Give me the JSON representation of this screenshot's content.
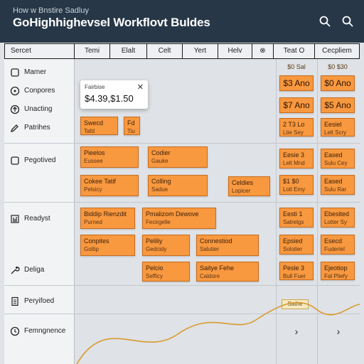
{
  "app": {
    "super_title": "How w Bnstire Sadluy",
    "title": "GoHighhighevsel Workflovt Buldes"
  },
  "header_icons": {
    "search": "search-icon",
    "search2": "search-icon"
  },
  "columns": [
    "Sercet",
    "Temi",
    "Elalt",
    "Celt",
    "Yert",
    "Helv",
    "⊗",
    "Teat O",
    "Cecpliem"
  ],
  "sidebar": {
    "items": [
      {
        "label": "Mamer",
        "icon": "square-icon"
      },
      {
        "label": "Conpores",
        "icon": "compass-icon"
      },
      {
        "label": "Unacting",
        "icon": "upload-icon"
      },
      {
        "label": "Patrihes",
        "icon": "pencil-icon"
      },
      {
        "label": "Pegotived",
        "icon": "square-icon"
      },
      {
        "label": "Readyst",
        "icon": "bar-chart-icon"
      },
      {
        "label": "Deliga",
        "icon": "wrench-icon"
      },
      {
        "label": "Peryifoed",
        "icon": "document-icon"
      },
      {
        "label": "Femngnence",
        "icon": "clock-icon"
      }
    ]
  },
  "popup": {
    "label": "Fairbise",
    "value": "$4.39,$1.50",
    "close": "✕"
  },
  "prices": {
    "col1": {
      "header": "$0 Sal",
      "rows": [
        "$3 Ano",
        "$7 Ano"
      ]
    },
    "col2": {
      "header": "$0 $30",
      "rows": [
        "$0 Ano",
        "$5 Ano"
      ]
    }
  },
  "cards": {
    "c1": {
      "l1": "Swecd",
      "l2": "Tafd"
    },
    "c2": {
      "l1": "Fd",
      "l2": "Tiu"
    },
    "c3": {
      "l1": "Pieelos",
      "l2": "Eussee"
    },
    "c4": {
      "l1": "Codier",
      "l2": "Gauke"
    },
    "c5": {
      "l1": "Cokee Tatif",
      "l2": "Pelsicy"
    },
    "c6": {
      "l1": "Colling",
      "l2": "Sadue"
    },
    "c7": {
      "l1": "Celdies",
      "l2": "Lopicer"
    },
    "c8": {
      "l1": "Biddip Rienzdit",
      "l2": "Purned"
    },
    "c9": {
      "l1": "Pmalizom Dewove",
      "l2": "Fecirgelle"
    },
    "c10": {
      "l1": "Conpites",
      "l2": "Goltip"
    },
    "c11": {
      "l1": "Peliliy",
      "l2": "Gedcidy"
    },
    "c12": {
      "l1": "Connestiod",
      "l2": "Salutier"
    },
    "c13": {
      "l1": "Pelcio",
      "l2": "Sefficy"
    },
    "c14": {
      "l1": "Saitye Fehe",
      "l2": "Caldore"
    }
  },
  "right1": [
    {
      "l1": "2 T3 Lo",
      "l2": "Ltie Sey"
    },
    {
      "l1": "Eesie 3",
      "l2": "Lelt Mnd"
    },
    {
      "l1": "$1 $0",
      "l2": "Lotl Emy"
    },
    {
      "l1": "Eesti 1",
      "l2": "Satrelgs"
    },
    {
      "l1": "Epsied",
      "l2": "Solotier"
    },
    {
      "l1": "Pesle 3",
      "l2": "Bull Fuer"
    }
  ],
  "right2": [
    {
      "l1": "Eesiel",
      "l2": "Lelt Scry"
    },
    {
      "l1": "Eased",
      "l2": "Sulu Cey"
    },
    {
      "l1": "Eased",
      "l2": "Sulu Rar"
    },
    {
      "l1": "Ebesited",
      "l2": "Lotter Sy"
    },
    {
      "l1": "Esecd",
      "l2": "Fuderiel"
    },
    {
      "l1": "Ejeotiop",
      "l2": "Fal Pliefy"
    }
  ],
  "badge": "Sathe",
  "chevrons": [
    "›",
    "›"
  ],
  "colors": {
    "header_bg": "#273747",
    "card": "#f8983f",
    "curve": "#d99a2e"
  }
}
